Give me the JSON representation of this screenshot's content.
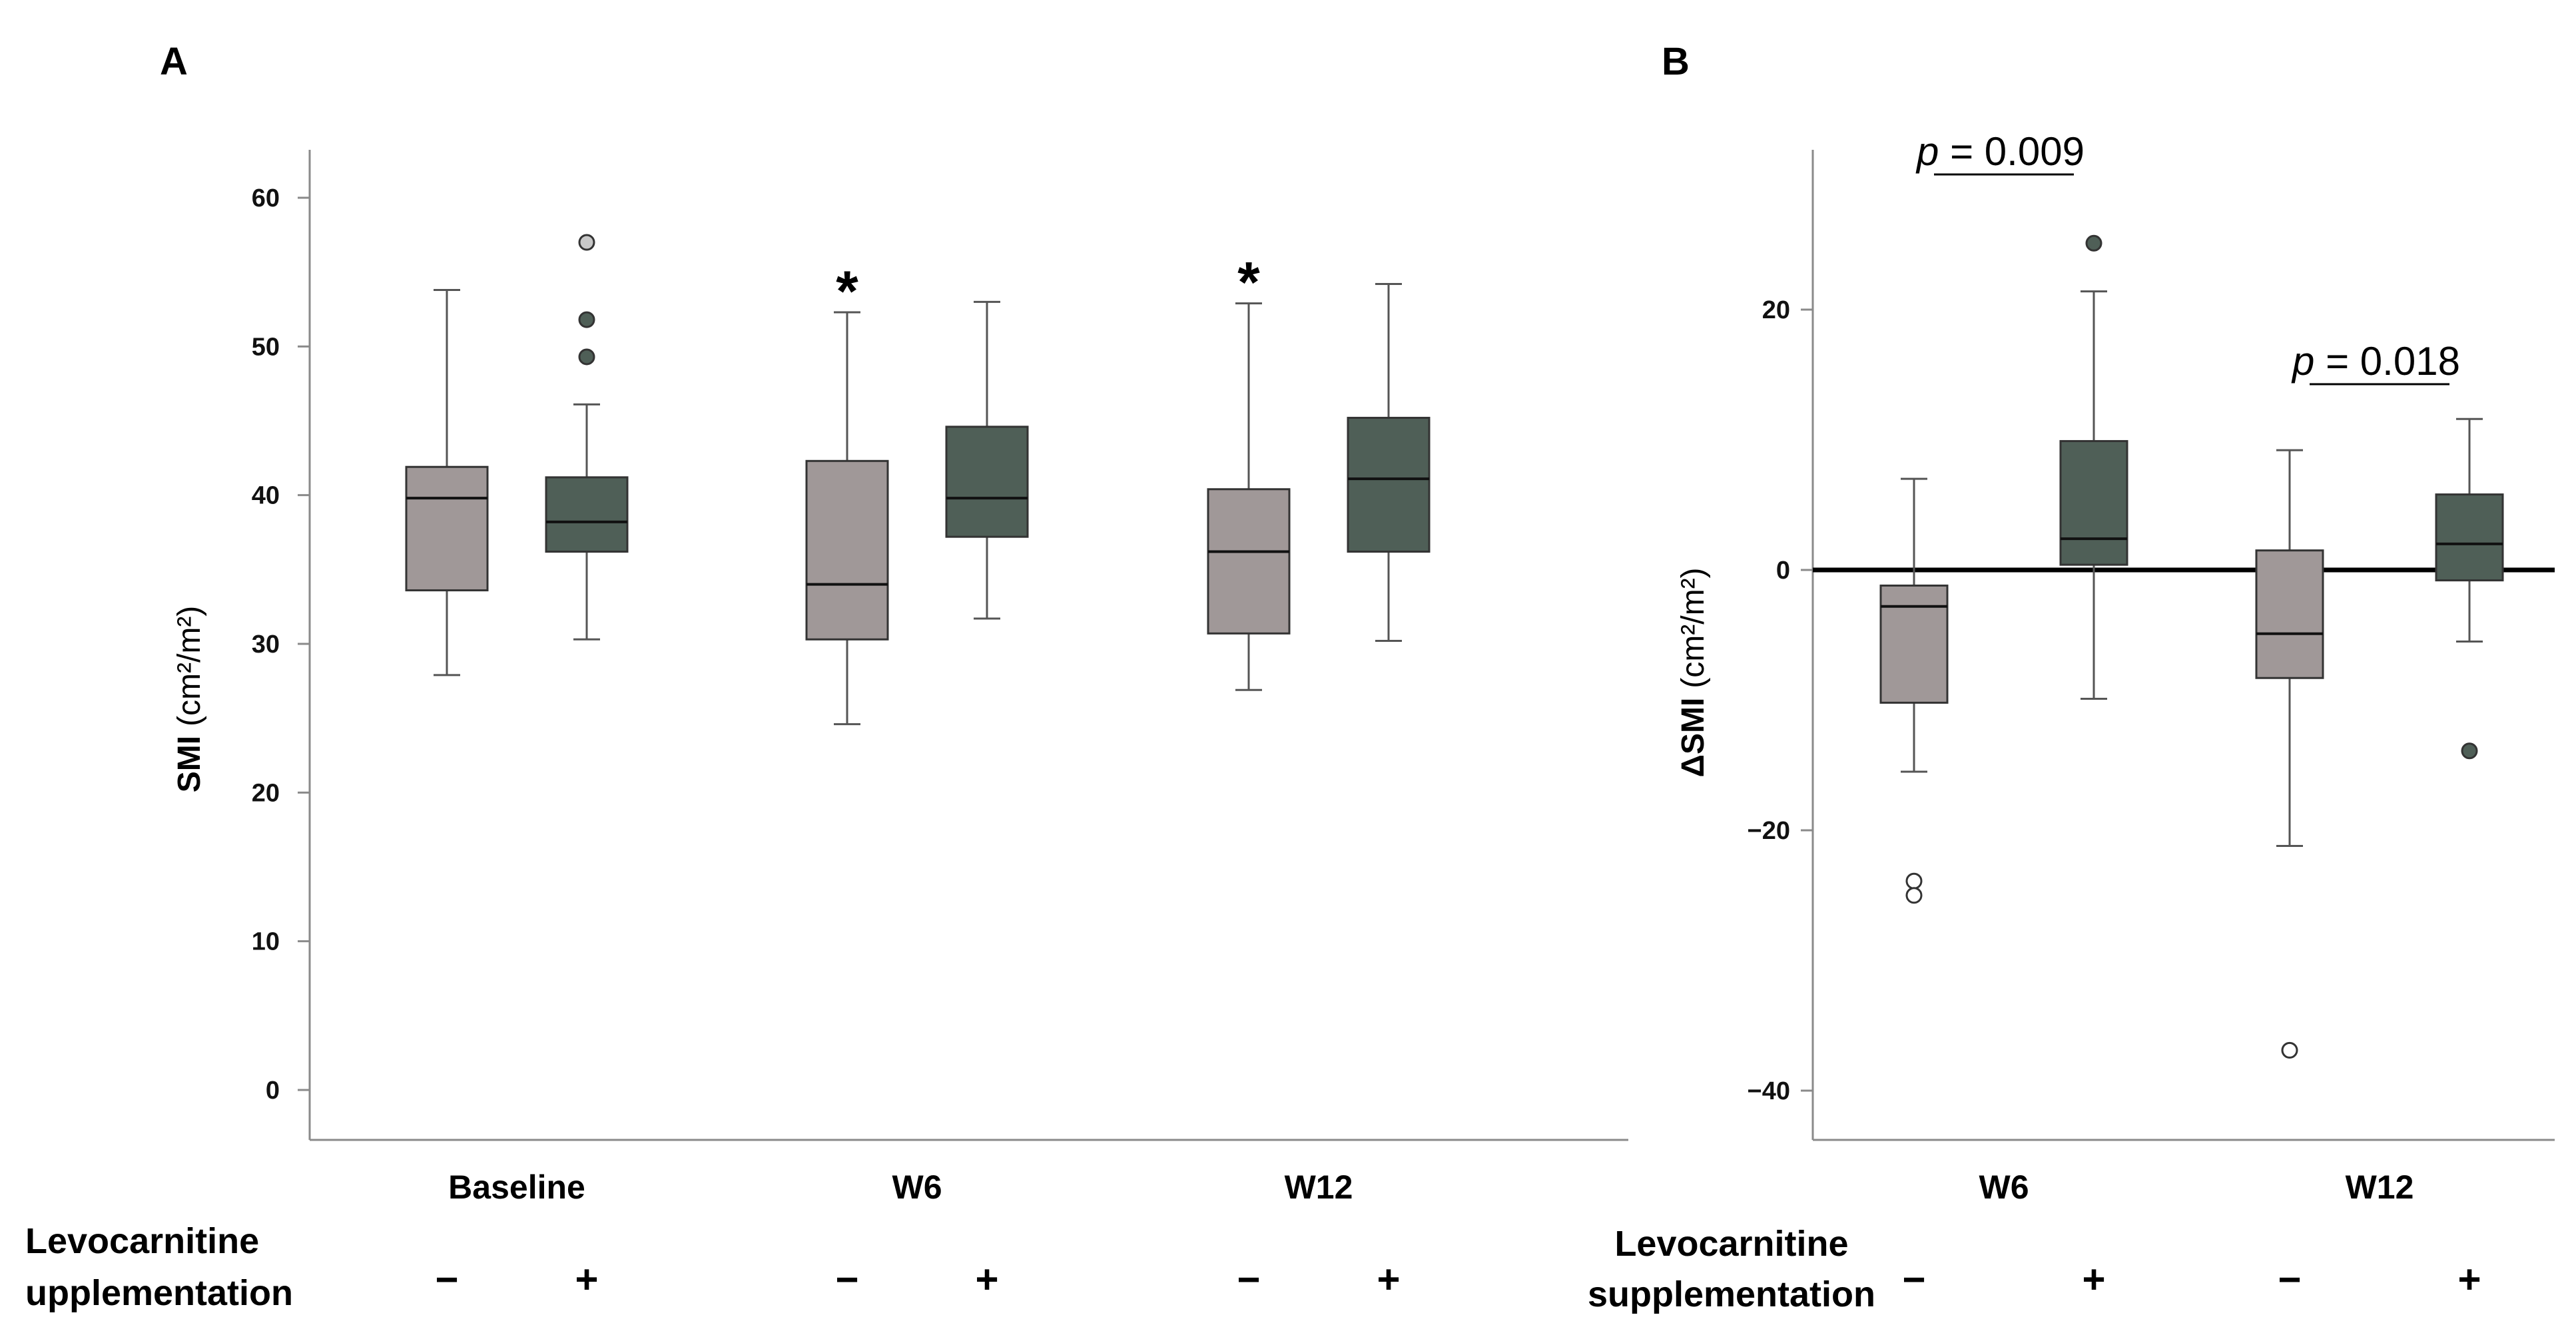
{
  "chart_data": [
    {
      "type": "box",
      "panel": "A",
      "ylabel_main": "SMI",
      "ylabel_unit": "(cm²/m²)",
      "ylim": [
        -3,
        63
      ],
      "yticks": [
        0,
        10,
        20,
        30,
        40,
        50,
        60
      ],
      "categories": [
        "Baseline",
        "W6",
        "W12"
      ],
      "row_label_line1": "Levocarnitine",
      "row_label_line2": "upplementation",
      "group_signs": [
        "−",
        "+"
      ],
      "colors": {
        "minus": "#a09898",
        "plus": "#4f5f57"
      },
      "boxes": [
        {
          "category": "Baseline",
          "group": "−",
          "whisker_low": 27.9,
          "q1": 33.6,
          "median": 39.8,
          "q3": 41.9,
          "whisker_high": 53.8,
          "outliers": []
        },
        {
          "category": "Baseline",
          "group": "+",
          "whisker_low": 30.3,
          "q1": 36.2,
          "median": 38.2,
          "q3": 41.2,
          "whisker_high": 46.1,
          "outliers": [
            57.0,
            51.8,
            49.3
          ]
        },
        {
          "category": "W6",
          "group": "−",
          "whisker_low": 24.6,
          "q1": 30.3,
          "median": 34.0,
          "q3": 42.3,
          "whisker_high": 52.3,
          "outliers": []
        },
        {
          "category": "W6",
          "group": "+",
          "whisker_low": 31.7,
          "q1": 37.2,
          "median": 39.8,
          "q3": 44.6,
          "whisker_high": 53.0,
          "outliers": []
        },
        {
          "category": "W12",
          "group": "−",
          "whisker_low": 26.9,
          "q1": 30.7,
          "median": 36.2,
          "q3": 40.4,
          "whisker_high": 52.9,
          "outliers": []
        },
        {
          "category": "W12",
          "group": "+",
          "whisker_low": 30.2,
          "q1": 36.2,
          "median": 41.1,
          "q3": 45.2,
          "whisker_high": 54.2,
          "outliers": []
        }
      ],
      "annotations": [
        {
          "text": "*",
          "category": "W6",
          "group": "−"
        },
        {
          "text": "*",
          "category": "W12",
          "group": "−"
        }
      ]
    },
    {
      "type": "box",
      "panel": "B",
      "ylabel_main": "ΔSMI",
      "ylabel_unit": "(cm²/m²)",
      "ylim": [
        -44,
        34
      ],
      "yticks": [
        -40,
        -20,
        0,
        20
      ],
      "reference_line": 0,
      "categories": [
        "W6",
        "W12"
      ],
      "row_label_line1": "Levocarnitine",
      "row_label_line2": "supplementation",
      "group_signs": [
        "−",
        "+"
      ],
      "colors": {
        "minus": "#a09898",
        "plus": "#4f5f57"
      },
      "boxes": [
        {
          "category": "W6",
          "group": "−",
          "whisker_low": -15.5,
          "q1": -10.2,
          "median": -2.8,
          "q3": -1.2,
          "whisker_high": 7.0,
          "outliers": [
            -23.9,
            -25.0
          ]
        },
        {
          "category": "W6",
          "group": "+",
          "whisker_low": -9.9,
          "q1": 0.4,
          "median": 2.4,
          "q3": 9.9,
          "whisker_high": 21.4,
          "outliers": [
            25.1
          ]
        },
        {
          "category": "W12",
          "group": "−",
          "whisker_low": -21.2,
          "q1": -8.3,
          "median": -4.9,
          "q3": 1.5,
          "whisker_high": 9.2,
          "outliers": [
            -36.9
          ]
        },
        {
          "category": "W12",
          "group": "+",
          "whisker_low": -5.5,
          "q1": -0.8,
          "median": 2.0,
          "q3": 5.8,
          "whisker_high": 11.6,
          "outliers": [
            -13.9
          ]
        }
      ],
      "significance": [
        {
          "category": "W6",
          "label_p": "p",
          "label_rest": " = 0.009"
        },
        {
          "category": "W12",
          "label_p": "p",
          "label_rest": " = 0.018"
        }
      ]
    }
  ]
}
